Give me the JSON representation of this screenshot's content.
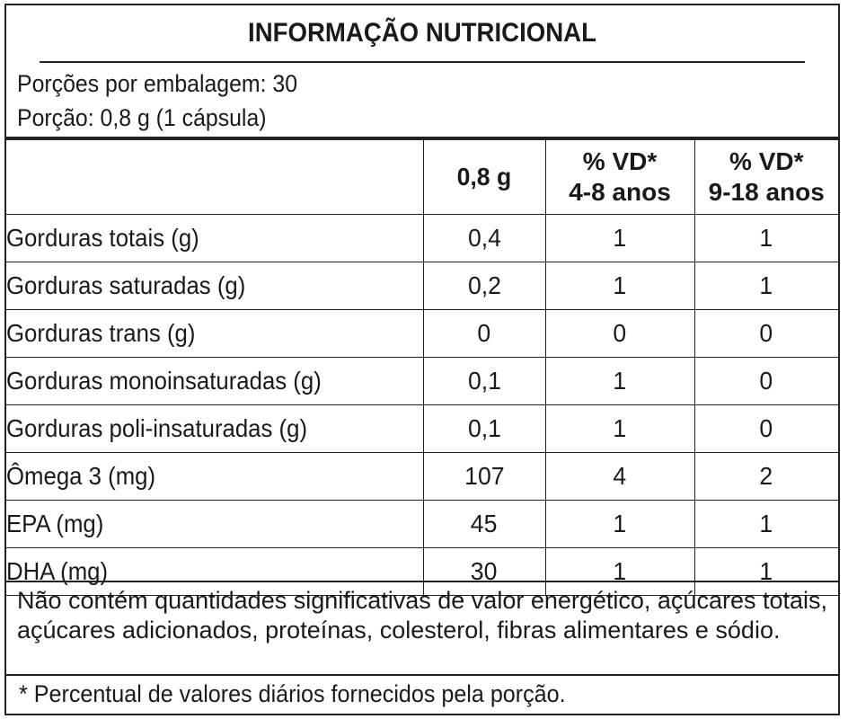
{
  "title": "INFORMAÇÃO NUTRICIONAL",
  "portion": {
    "servings_per_package": "Porções por embalagem: 30",
    "serving_size": "Porção: 0,8 g (1 cápsula)"
  },
  "table": {
    "headers": {
      "amount": "0,8 g",
      "vd1_line1": "% VD*",
      "vd1_line2": "4-8 anos",
      "vd2_line1": "% VD*",
      "vd2_line2": "9-18 anos"
    },
    "rows": [
      {
        "label": "Gorduras totais (g)",
        "amount": "0,4",
        "vd1": "1",
        "vd2": "1"
      },
      {
        "label": "Gorduras saturadas (g)",
        "amount": "0,2",
        "vd1": "1",
        "vd2": "1"
      },
      {
        "label": "Gorduras trans (g)",
        "amount": "0",
        "vd1": "0",
        "vd2": "0"
      },
      {
        "label": "Gorduras monoinsaturadas (g)",
        "amount": "0,1",
        "vd1": "1",
        "vd2": "0"
      },
      {
        "label": "Gorduras poli-insaturadas (g)",
        "amount": "0,1",
        "vd1": "1",
        "vd2": "0"
      },
      {
        "label": "Ômega 3 (mg)",
        "amount": "107",
        "vd1": "4",
        "vd2": "2"
      },
      {
        "label": "EPA (mg)",
        "amount": "45",
        "vd1": "1",
        "vd2": "1"
      },
      {
        "label": "DHA (mg)",
        "amount": "30",
        "vd1": "1",
        "vd2": "1"
      }
    ]
  },
  "note": "Não contém quantidades significativas de valor energético, açúcares totais, açúcares adicionados, proteínas, colesterol, fibras alimentares e sódio.",
  "footnote": "* Percentual de valores diários fornecidos pela porção."
}
